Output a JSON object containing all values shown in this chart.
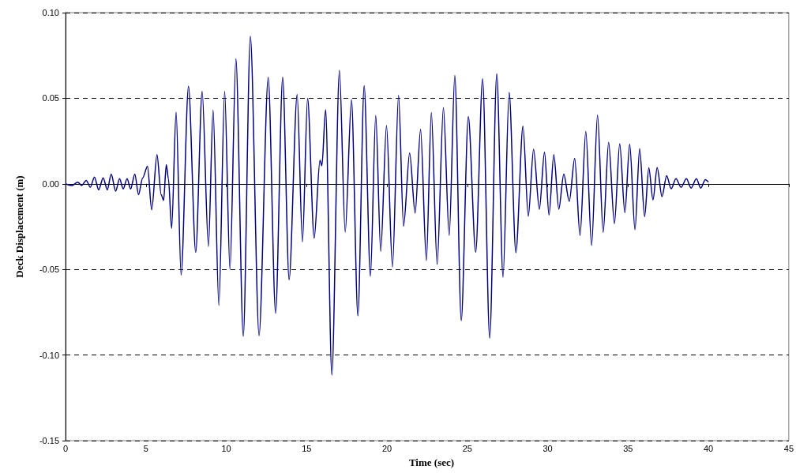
{
  "chart_data": {
    "type": "line",
    "xlabel": "Time (sec)",
    "ylabel": "Deck Displacement (m)",
    "xlim": [
      0,
      45
    ],
    "xticks": [
      0,
      5,
      10,
      15,
      20,
      25,
      30,
      35,
      40,
      45
    ],
    "ylim": [
      -0.15,
      0.1
    ],
    "yticks": [
      {
        "value": -0.15,
        "label": "-0.15"
      },
      {
        "value": -0.1,
        "label": "-0.10"
      },
      {
        "value": -0.05,
        "label": "-0.05"
      },
      {
        "value": 0,
        "label": "0.00"
      },
      {
        "value": 0.05,
        "label": "0.05"
      },
      {
        "value": 0.1,
        "label": "0.10"
      }
    ],
    "grid": "y",
    "marker": "none",
    "line_style": "solid",
    "series": [
      {
        "color": "#000080",
        "x": [
          0,
          0.39,
          0.76,
          1.0,
          1.29,
          1.54,
          1.8,
          2.06,
          2.34,
          2.6,
          2.84,
          3.12,
          3.36,
          3.59,
          3.83,
          4.05,
          4.31,
          4.54,
          4.8,
          5.1,
          5.36,
          5.69,
          5.95,
          6.1,
          6.27,
          6.4,
          6.6,
          6.88,
          7.19,
          7.65,
          8.1,
          8.5,
          8.89,
          9.18,
          9.54,
          9.9,
          10.23,
          10.6,
          11.06,
          11.5,
          12.04,
          12.61,
          13.07,
          13.51,
          13.91,
          14.41,
          14.74,
          15.06,
          15.47,
          15.83,
          15.95,
          16.18,
          16.57,
          17.04,
          17.4,
          17.79,
          18.19,
          18.58,
          18.97,
          19.3,
          19.61,
          19.97,
          20.34,
          20.72,
          21.03,
          21.41,
          21.75,
          22.09,
          22.45,
          22.76,
          23.12,
          23.51,
          23.87,
          24.22,
          24.62,
          25.06,
          25.52,
          25.95,
          26.39,
          26.83,
          27.22,
          27.6,
          28.02,
          28.46,
          28.79,
          29.12,
          29.48,
          29.8,
          30.08,
          30.38,
          30.69,
          31.0,
          31.34,
          31.68,
          32.01,
          32.37,
          32.73,
          33.1,
          33.45,
          33.79,
          34.15,
          34.48,
          34.8,
          35.1,
          35.43,
          35.72,
          36.03,
          36.29,
          36.55,
          36.81,
          37.11,
          37.4,
          37.68,
          37.98,
          38.3,
          38.63,
          38.92,
          39.25,
          39.52,
          39.81,
          40.0
        ],
        "values": [
          0,
          -0.001,
          0.001,
          -0.001,
          0.002,
          -0.002,
          0.004,
          -0.0035,
          0.0035,
          -0.0035,
          0.0057,
          -0.0043,
          0.003,
          -0.003,
          0.003,
          -0.003,
          0.0057,
          -0.0063,
          0.0035,
          0.0103,
          -0.0152,
          0.0171,
          -0.0063,
          -0.0097,
          0.0112,
          0.003,
          -0.026,
          0.0419,
          -0.0532,
          0.057,
          -0.04,
          0.054,
          -0.0366,
          0.043,
          -0.071,
          0.054,
          -0.05,
          0.073,
          -0.089,
          0.0863,
          -0.0886,
          0.0622,
          -0.0756,
          0.0623,
          -0.056,
          0.0522,
          -0.034,
          0.0499,
          -0.0317,
          0.0137,
          0.0106,
          0.0433,
          -0.1117,
          0.0663,
          -0.0282,
          0.0491,
          -0.0771,
          0.0573,
          -0.054,
          0.0399,
          -0.0394,
          0.034,
          -0.0486,
          0.0517,
          -0.0248,
          0.018,
          -0.0171,
          0.0319,
          -0.0448,
          0.0417,
          -0.0471,
          0.0445,
          -0.0302,
          0.0633,
          -0.0799,
          0.0394,
          -0.0399,
          0.0614,
          -0.0902,
          0.0642,
          -0.0545,
          0.0534,
          -0.0402,
          0.0337,
          -0.0189,
          0.0202,
          -0.0148,
          0.0186,
          -0.0182,
          0.0171,
          -0.0148,
          0.0057,
          -0.0102,
          0.0149,
          -0.0302,
          0.0306,
          -0.036,
          0.0402,
          -0.0283,
          0.0242,
          -0.0232,
          0.0234,
          -0.0168,
          0.0232,
          -0.0268,
          0.0205,
          -0.0191,
          0.0094,
          -0.0094,
          0.0095,
          -0.0075,
          0.0048,
          -0.0029,
          0.003,
          -0.002,
          0.003,
          -0.0025,
          0.003,
          -0.0025,
          0.0025,
          0.001
        ]
      }
    ]
  }
}
